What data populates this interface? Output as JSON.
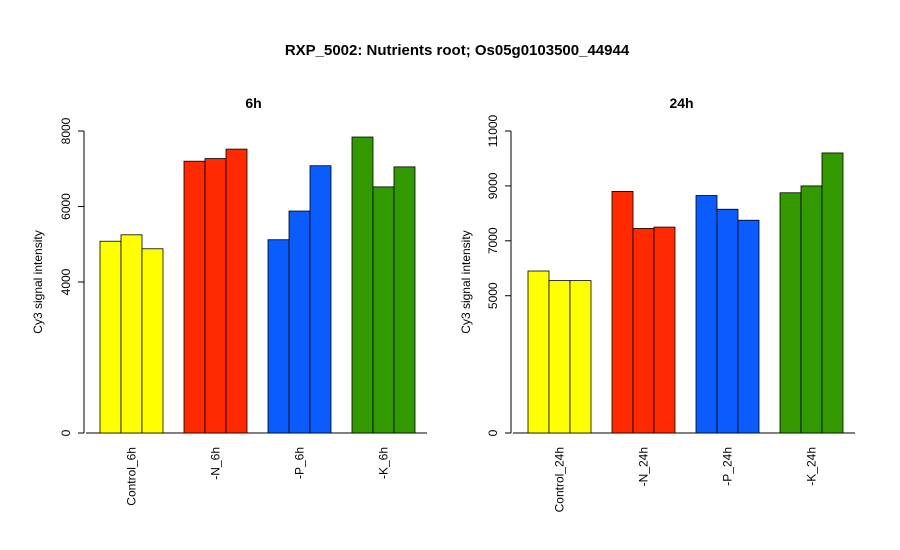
{
  "title": "RXP_5002: Nutrients root; Os05g0103500_44944",
  "chart_data": [
    {
      "type": "bar",
      "title": "6h",
      "ylabel": "Cy3 signal intensity",
      "ylim": [
        0,
        8000
      ],
      "yticks": [
        0,
        4000,
        6000,
        8000
      ],
      "categories": [
        "Control_6h",
        "-N_6h",
        "-P_6h",
        "-K_6h"
      ],
      "colors": [
        "#ffff00",
        "#ff2a00",
        "#0a5cff",
        "#339900"
      ],
      "values": [
        [
          5080,
          5250,
          4880
        ],
        [
          7200,
          7270,
          7520
        ],
        [
          5120,
          5880,
          7080
        ],
        [
          7840,
          6520,
          7050
        ]
      ]
    },
    {
      "type": "bar",
      "title": "24h",
      "ylabel": "Cy3 signal intensity",
      "ylim": [
        0,
        11000
      ],
      "yticks": [
        0,
        5000,
        7000,
        9000,
        11000
      ],
      "categories": [
        "Control_24h",
        "-N_24h",
        "-P_24h",
        "-K_24h"
      ],
      "colors": [
        "#ffff00",
        "#ff2a00",
        "#0a5cff",
        "#339900"
      ],
      "values": [
        [
          5900,
          5550,
          5550
        ],
        [
          8800,
          7450,
          7500
        ],
        [
          8650,
          8150,
          7750
        ],
        [
          8750,
          9000,
          10200
        ]
      ]
    }
  ]
}
